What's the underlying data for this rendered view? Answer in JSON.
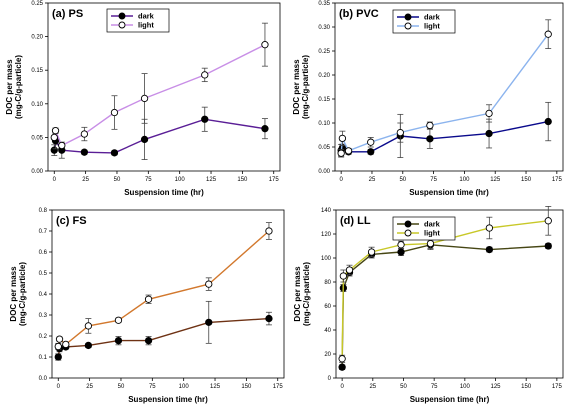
{
  "chart_data": [
    {
      "type": "line",
      "title": "(a) PS",
      "xlabel": "Suspension time (hr)",
      "ylabel": [
        "DOC per mass",
        "(mg-C/g-particle)"
      ],
      "xlim": [
        -5,
        180
      ],
      "ylim": [
        0,
        0.25
      ],
      "x_ticks": [
        "0",
        "25",
        "50",
        "75",
        "100",
        "125",
        "150",
        "175"
      ],
      "y_ticks": [
        "0.00",
        "0.05",
        "0.10",
        "0.15",
        "0.20",
        "0.25"
      ],
      "grid": false,
      "legend": "top-left",
      "series": [
        {
          "name": "dark",
          "color": "#5a1e96",
          "marker": "filled",
          "x": [
            0,
            1,
            6,
            24,
            48,
            72,
            120,
            168
          ],
          "y": [
            0.031,
            0.045,
            0.031,
            0.028,
            0.027,
            0.047,
            0.077,
            0.063
          ],
          "err": [
            0.008,
            0.012,
            0.012,
            0.003,
            0.003,
            0.03,
            0.018,
            0.015
          ]
        },
        {
          "name": "light",
          "color": "#c88ee6",
          "marker": "open",
          "x": [
            0,
            1,
            6,
            24,
            48,
            72,
            120,
            168
          ],
          "y": [
            0.05,
            0.06,
            0.038,
            0.055,
            0.087,
            0.108,
            0.143,
            0.188
          ],
          "err": [
            0.003,
            0.004,
            0.003,
            0.01,
            0.025,
            0.037,
            0.01,
            0.032
          ]
        }
      ]
    },
    {
      "type": "line",
      "title": "(b) PVC",
      "xlabel": "Suspension time (hr)",
      "ylabel": [
        "DOC per mass",
        "(mg-C/g-particle)"
      ],
      "xlim": [
        -5,
        180
      ],
      "ylim": [
        0,
        0.35
      ],
      "x_ticks": [
        "0",
        "25",
        "50",
        "75",
        "100",
        "125",
        "150",
        "175"
      ],
      "y_ticks": [
        "0.00",
        "0.05",
        "0.10",
        "0.15",
        "0.20",
        "0.25",
        "0.30",
        "0.35"
      ],
      "grid": false,
      "legend": "top-left",
      "series": [
        {
          "name": "dark",
          "color": "#0a0a8c",
          "marker": "filled",
          "x": [
            0,
            1,
            6,
            24,
            48,
            72,
            120,
            168
          ],
          "y": [
            0.043,
            0.048,
            0.04,
            0.04,
            0.073,
            0.067,
            0.078,
            0.103
          ],
          "err": [
            0.012,
            0.008,
            0.005,
            0.005,
            0.045,
            0.02,
            0.03,
            0.04
          ]
        },
        {
          "name": "light",
          "color": "#8cb4ee",
          "marker": "open",
          "x": [
            0,
            1,
            6,
            24,
            48,
            72,
            120,
            168
          ],
          "y": [
            0.037,
            0.068,
            0.042,
            0.06,
            0.08,
            0.095,
            0.12,
            0.285
          ],
          "err": [
            0.008,
            0.015,
            0.005,
            0.01,
            0.02,
            0.007,
            0.018,
            0.03
          ]
        }
      ]
    },
    {
      "type": "line",
      "title": "(c) FS",
      "xlabel": "Suspension time (hr)",
      "ylabel": [
        "DOC per mass",
        "(mg-C/g-particle)"
      ],
      "xlim": [
        -5,
        180
      ],
      "ylim": [
        0,
        0.8
      ],
      "x_ticks": [
        "0",
        "25",
        "50",
        "75",
        "100",
        "125",
        "150",
        "175"
      ],
      "y_ticks": [
        "0.0",
        "0.1",
        "0.2",
        "0.3",
        "0.4",
        "0.5",
        "0.6",
        "0.7",
        "0.8"
      ],
      "grid": false,
      "legend": "none",
      "series": [
        {
          "name": "dark",
          "color": "#6e3214",
          "marker": "filled",
          "x": [
            0,
            1,
            6,
            24,
            48,
            72,
            120,
            168
          ],
          "y": [
            0.1,
            0.14,
            0.148,
            0.155,
            0.178,
            0.178,
            0.265,
            0.283
          ],
          "err": [
            0.015,
            0.015,
            0.01,
            0.01,
            0.02,
            0.02,
            0.1,
            0.03
          ]
        },
        {
          "name": "light",
          "color": "#d2782d",
          "marker": "open",
          "x": [
            0,
            1,
            6,
            24,
            48,
            72,
            120,
            168
          ],
          "y": [
            0.15,
            0.185,
            0.16,
            0.248,
            0.275,
            0.375,
            0.447,
            0.7
          ],
          "err": [
            0.015,
            0.01,
            0.01,
            0.035,
            0.01,
            0.02,
            0.03,
            0.04
          ]
        }
      ]
    },
    {
      "type": "line",
      "title": "(d) LL",
      "xlabel": "Suspension time (hr)",
      "ylabel": [
        "DOC per mass",
        "(mg-C/g-particle)"
      ],
      "xlim": [
        -5,
        180
      ],
      "ylim": [
        0,
        140
      ],
      "x_ticks": [
        "0",
        "25",
        "50",
        "75",
        "100",
        "125",
        "150",
        "175"
      ],
      "y_ticks": [
        "0",
        "20",
        "40",
        "60",
        "80",
        "100",
        "120",
        "140"
      ],
      "grid": false,
      "legend": "top-left",
      "series": [
        {
          "name": "dark",
          "color": "#464614",
          "marker": "filled",
          "x": [
            0,
            1,
            6,
            24,
            48,
            72,
            120,
            168
          ],
          "y": [
            9,
            75,
            88,
            103,
            105,
            111,
            107,
            110
          ],
          "err": [
            2,
            3,
            3,
            3,
            3,
            3,
            2,
            2
          ]
        },
        {
          "name": "light",
          "color": "#c8c828",
          "marker": "open",
          "x": [
            0,
            1,
            6,
            24,
            48,
            72,
            120,
            168
          ],
          "y": [
            16,
            85,
            90,
            105,
            111,
            112,
            125,
            131
          ],
          "err": [
            3,
            5,
            4,
            4,
            3,
            5,
            9,
            12
          ]
        }
      ]
    }
  ]
}
